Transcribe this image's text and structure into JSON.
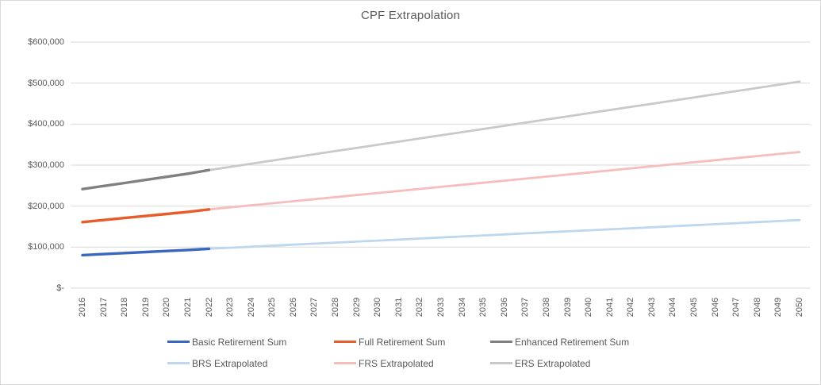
{
  "chart_data": {
    "type": "line",
    "title": "CPF Extrapolation",
    "legend_position": "bottom",
    "grid": "horizontal",
    "colors": {
      "text": "#595959",
      "gridline": "#d9d9d9",
      "border": "#d9d9d9",
      "background": "#ffffff"
    },
    "x_years": [
      2016,
      2017,
      2018,
      2019,
      2020,
      2021,
      2022,
      2023,
      2024,
      2025,
      2026,
      2027,
      2028,
      2029,
      2030,
      2031,
      2032,
      2033,
      2034,
      2035,
      2036,
      2037,
      2038,
      2039,
      2040,
      2041,
      2042,
      2043,
      2044,
      2045,
      2046,
      2047,
      2048,
      2049,
      2050
    ],
    "y_axis": {
      "min": 0,
      "max": 600000,
      "ticks": [
        {
          "value": 0,
          "label": "$-"
        },
        {
          "value": 100000,
          "label": "$100,000"
        },
        {
          "value": 200000,
          "label": "$200,000"
        },
        {
          "value": 300000,
          "label": "$300,000"
        },
        {
          "value": 400000,
          "label": "$400,000"
        },
        {
          "value": 500000,
          "label": "$500,000"
        },
        {
          "value": 600000,
          "label": "$600,000"
        }
      ]
    },
    "series": [
      {
        "name": "Basic Retirement Sum",
        "color": "#3a67be",
        "style": "solid",
        "start_year": 2016,
        "values": [
          80500,
          83000,
          85500,
          88000,
          90500,
          93000,
          96000
        ]
      },
      {
        "name": "Full Retirement Sum",
        "color": "#e65c2b",
        "style": "solid",
        "start_year": 2016,
        "values": [
          161000,
          166000,
          171000,
          176000,
          181000,
          186000,
          192000
        ]
      },
      {
        "name": "Enhanced Retirement Sum",
        "color": "#808080",
        "style": "solid",
        "start_year": 2016,
        "values": [
          241500,
          249000,
          256500,
          264000,
          271500,
          279000,
          288000
        ]
      },
      {
        "name": "BRS Extrapolated",
        "color": "#bdd7ee",
        "style": "extrapolated",
        "start_year": 2022,
        "values": [
          96000,
          98500,
          101000,
          103500,
          106000,
          108500,
          111000,
          113500,
          116000,
          118500,
          121000,
          123500,
          126000,
          128500,
          131000,
          133500,
          136000,
          138500,
          141000,
          143500,
          146000,
          148500,
          151000,
          153500,
          156000,
          158500,
          161000,
          163500,
          166000
        ]
      },
      {
        "name": "FRS Extrapolated",
        "color": "#f7bcbc",
        "style": "extrapolated",
        "start_year": 2022,
        "values": [
          192000,
          197000,
          202000,
          207000,
          212000,
          217000,
          222000,
          227000,
          232000,
          237000,
          242000,
          247000,
          252000,
          257000,
          262000,
          267000,
          272000,
          277000,
          282000,
          287000,
          292000,
          297000,
          302000,
          307000,
          312000,
          317000,
          322000,
          327000,
          332000
        ]
      },
      {
        "name": "ERS Extrapolated",
        "color": "#c9c9c9",
        "style": "extrapolated",
        "start_year": 2022,
        "values": [
          288000,
          295700,
          303400,
          311100,
          318800,
          326500,
          334200,
          341900,
          349600,
          357300,
          365000,
          372700,
          380400,
          388100,
          395800,
          403500,
          411200,
          418900,
          426600,
          434300,
          442000,
          449700,
          457400,
          465100,
          472800,
          480500,
          488200,
          495900,
          503600
        ]
      }
    ]
  }
}
